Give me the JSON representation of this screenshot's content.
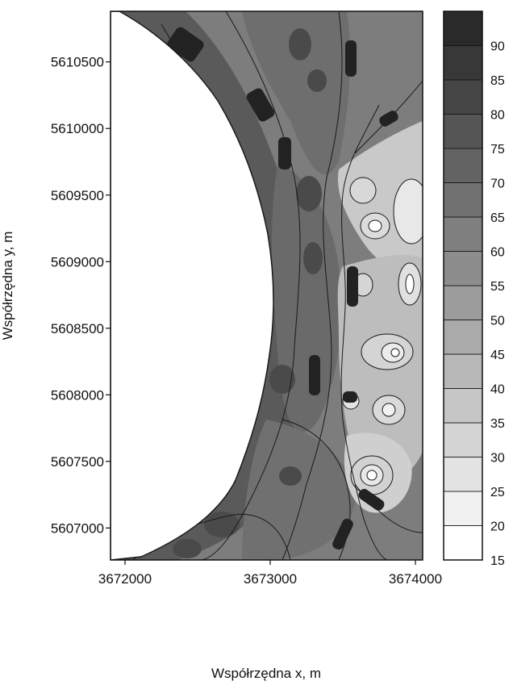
{
  "chart_data": {
    "type": "heatmap",
    "title": "",
    "xlabel": "Współrzędna x, m",
    "ylabel": "Współrzędna y, m",
    "xlim": [
      3671900,
      3674050
    ],
    "ylim": [
      5606760,
      5610880
    ],
    "x_ticks": [
      {
        "value": 3672000,
        "label": "3672000"
      },
      {
        "value": 3673000,
        "label": "3673000"
      },
      {
        "value": 3674000,
        "label": "3674000"
      }
    ],
    "y_ticks": [
      {
        "value": 5607000,
        "label": "5607000"
      },
      {
        "value": 5607500,
        "label": "5607500"
      },
      {
        "value": 5608000,
        "label": "5608000"
      },
      {
        "value": 5608500,
        "label": "5608500"
      },
      {
        "value": 5609000,
        "label": "5609000"
      },
      {
        "value": 5609500,
        "label": "5609500"
      },
      {
        "value": 5610000,
        "label": "5610000"
      },
      {
        "value": 5610500,
        "label": "5610500"
      }
    ],
    "colorbar": {
      "levels": [
        15,
        20,
        25,
        30,
        35,
        40,
        45,
        50,
        55,
        60,
        65,
        70,
        75,
        80,
        85,
        90
      ],
      "labels": [
        "15",
        "20",
        "25",
        "30",
        "35",
        "40",
        "45",
        "50",
        "55",
        "60",
        "65",
        "70",
        "75",
        "80",
        "85",
        "90"
      ],
      "top_value": 95
    },
    "grid": false,
    "legend": "colorbar-right",
    "colors": {
      "land": "#ffffff",
      "scale_light": "#ffffff",
      "scale_dark": "#2a2a2a",
      "contour": "#1a1a1a"
    }
  }
}
